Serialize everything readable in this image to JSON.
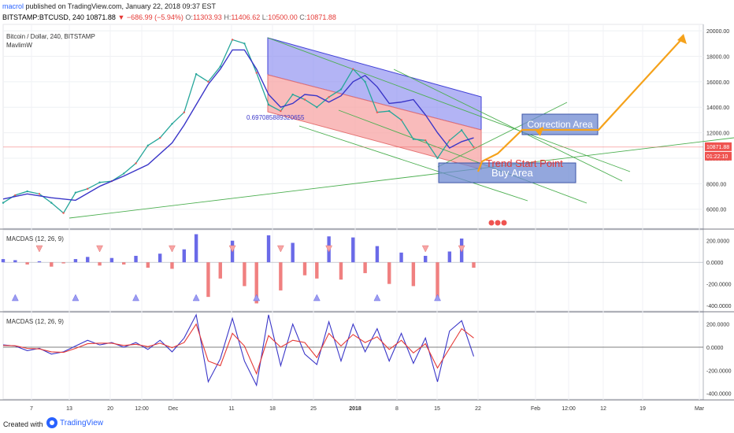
{
  "header": {
    "author": "macrol",
    "published_text": "published on TradingView.com, January 22, 2018 09:37 EST",
    "symbol": "BITSTAMP:BTCUSD, 240",
    "last": "10871.88",
    "change": "▼ −686.99 (−5.94%)",
    "o_label": "O:",
    "o_value": "11303.93",
    "h_label": "H:",
    "h_value": "11406.62",
    "l_label": "L:",
    "l_value": "10500.00",
    "c_label": "C:",
    "c_value": "10871.88"
  },
  "footer": {
    "created_with": "Created with",
    "brand": "TradingView"
  },
  "chart_data": [
    {
      "type": "line",
      "title": "Bitcoin / Dollar, 240, BITSTAMP",
      "indicator_label": "MavlimW",
      "y_ticks": [
        6000,
        8000,
        10000,
        12000,
        14000,
        16000,
        18000,
        20000
      ],
      "y_tick_labels": [
        "6000.00",
        "8000.00",
        "10000.00",
        "12000.00",
        "14000.00",
        "16000.00",
        "18000.00",
        "20000.00"
      ],
      "ylim": [
        4500,
        20500
      ],
      "x_tick_labels": [
        "7",
        "13",
        "20",
        "12:00",
        "Dec",
        "11",
        "18",
        "25",
        "2018",
        "8",
        "15",
        "22",
        "Feb",
        "12:00",
        "12",
        "19",
        "Mar"
      ],
      "price_badges": [
        "10871.88",
        "01:22:10"
      ],
      "series": [
        {
          "name": "BTCUSD",
          "x": [
            0,
            2,
            4,
            6,
            8,
            10,
            12,
            14,
            16,
            18,
            20,
            22,
            24,
            26,
            28,
            30,
            32,
            34,
            36,
            38,
            40,
            42,
            44,
            46,
            48,
            50,
            52,
            54,
            56,
            58,
            60,
            62,
            64,
            66,
            68,
            70,
            72,
            74,
            76,
            78
          ],
          "values": [
            6500,
            7100,
            7400,
            7200,
            6500,
            5700,
            7300,
            7600,
            8100,
            8200,
            8800,
            9600,
            11000,
            11600,
            12700,
            13600,
            16600,
            16000,
            17200,
            19300,
            19000,
            16700,
            14200,
            13700,
            15000,
            14600,
            14000,
            14800,
            15400,
            17000,
            16000,
            13600,
            13700,
            13000,
            11500,
            11400,
            10000,
            11400,
            12200,
            10871.88
          ]
        },
        {
          "name": "MavlimW",
          "x": [
            0,
            4,
            8,
            12,
            16,
            20,
            24,
            28,
            30,
            32,
            34,
            36,
            38,
            40,
            42,
            44,
            46,
            48,
            50,
            52,
            54,
            56,
            58,
            60,
            62,
            64,
            66,
            68,
            70,
            72,
            74,
            76,
            78
          ],
          "values": [
            6800,
            7200,
            6900,
            6700,
            7800,
            8600,
            9500,
            11200,
            12600,
            14200,
            15800,
            17000,
            18500,
            18500,
            17000,
            15000,
            14000,
            14300,
            15000,
            14900,
            14400,
            14900,
            16000,
            16500,
            15600,
            14300,
            14400,
            14600,
            13400,
            12000,
            10800,
            11300,
            11600
          ]
        }
      ],
      "annotations": [
        "0.697085889320655",
        "Correction Area",
        "Trend Start Point",
        "Buy Area"
      ]
    },
    {
      "type": "bar",
      "title": "MACDAS (12, 26, 9)",
      "y_tick_labels": [
        "200.0000",
        "0.0000",
        "-200.0000",
        "-400.0000"
      ],
      "ylim": [
        -450,
        300
      ],
      "x": [
        0,
        2,
        4,
        6,
        8,
        10,
        12,
        14,
        16,
        18,
        20,
        22,
        24,
        26,
        28,
        30,
        32,
        34,
        36,
        38,
        40,
        42,
        44,
        46,
        48,
        50,
        52,
        54,
        56,
        58,
        60,
        62,
        64,
        66,
        68,
        70,
        72,
        74,
        76,
        78
      ],
      "values": [
        30,
        20,
        -20,
        10,
        -40,
        -10,
        30,
        50,
        -30,
        40,
        -20,
        60,
        -50,
        80,
        -60,
        120,
        260,
        -320,
        -150,
        200,
        -220,
        -380,
        250,
        -260,
        180,
        -120,
        -150,
        240,
        -160,
        230,
        -100,
        150,
        -200,
        90,
        -220,
        60,
        -340,
        100,
        220,
        -50
      ]
    },
    {
      "type": "line",
      "title": "MACDAS (12, 26, 9)",
      "y_tick_labels": [
        "200.0000",
        "0.0000",
        "-200.0000",
        "-400.0000"
      ],
      "ylim": [
        -450,
        300
      ],
      "series": [
        {
          "name": "MACDAS",
          "x": [
            0,
            2,
            4,
            6,
            8,
            10,
            12,
            14,
            16,
            18,
            20,
            22,
            24,
            26,
            28,
            30,
            32,
            34,
            36,
            38,
            40,
            42,
            44,
            46,
            48,
            50,
            52,
            54,
            56,
            58,
            60,
            62,
            64,
            66,
            68,
            70,
            72,
            74,
            76,
            78
          ],
          "values": [
            20,
            10,
            -30,
            -10,
            -60,
            -40,
            10,
            60,
            20,
            40,
            0,
            40,
            -20,
            60,
            -40,
            80,
            280,
            -300,
            -100,
            250,
            -120,
            -330,
            280,
            -160,
            200,
            -60,
            -150,
            220,
            -120,
            200,
            -40,
            160,
            -120,
            120,
            -140,
            80,
            -300,
            140,
            230,
            -80
          ]
        },
        {
          "name": "Signal",
          "x": [
            0,
            2,
            4,
            6,
            8,
            10,
            12,
            14,
            16,
            18,
            20,
            22,
            24,
            26,
            28,
            30,
            32,
            34,
            36,
            38,
            40,
            42,
            44,
            46,
            48,
            50,
            52,
            54,
            56,
            58,
            60,
            62,
            64,
            66,
            68,
            70,
            72,
            74,
            76,
            78
          ],
          "values": [
            15,
            12,
            -10,
            -15,
            -40,
            -45,
            -10,
            30,
            35,
            35,
            15,
            25,
            5,
            35,
            -5,
            40,
            200,
            -120,
            -160,
            120,
            10,
            -230,
            100,
            0,
            60,
            40,
            -90,
            120,
            10,
            110,
            40,
            90,
            -20,
            60,
            -50,
            30,
            -180,
            -10,
            160,
            80
          ]
        }
      ]
    }
  ]
}
